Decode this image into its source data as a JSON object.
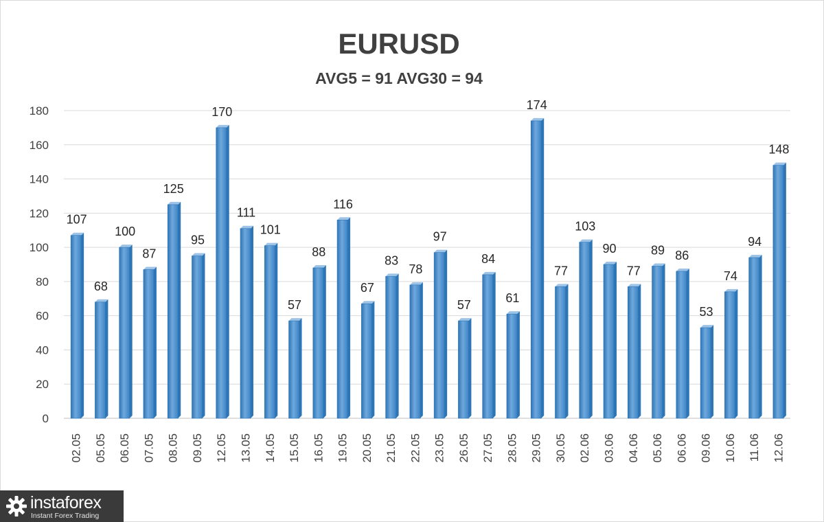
{
  "chart_data": {
    "type": "bar",
    "title": "EURUSD",
    "subtitle": "AVG5 = 91 AVG30 = 94",
    "xlabel": "",
    "ylabel": "",
    "categories": [
      "02.05",
      "05.05",
      "06.05",
      "07.05",
      "08.05",
      "09.05",
      "12.05",
      "13.05",
      "14.05",
      "15.05",
      "16.05",
      "19.05",
      "20.05",
      "21.05",
      "22.05",
      "23.05",
      "26.05",
      "27.05",
      "28.05",
      "29.05",
      "30.05",
      "02.06",
      "03.06",
      "04.06",
      "05.06",
      "06.06",
      "09.06",
      "10.06",
      "11.06",
      "12.06"
    ],
    "values": [
      107,
      68,
      100,
      87,
      125,
      95,
      170,
      111,
      101,
      57,
      88,
      116,
      67,
      83,
      78,
      97,
      57,
      84,
      61,
      174,
      77,
      103,
      90,
      77,
      89,
      86,
      53,
      74,
      94,
      148
    ],
    "ylim": [
      0,
      180
    ],
    "yticks": [
      "0",
      "20",
      "40",
      "60",
      "80",
      "100",
      "120",
      "140",
      "160",
      "180"
    ],
    "grid": true,
    "legend": "none",
    "bar_color": "#5b9bd5",
    "bar_color_dark": "#2e75b6"
  },
  "logo": {
    "brand": "instaforex",
    "tagline": "Instant Forex Trading",
    "icon": "gear-icon"
  }
}
